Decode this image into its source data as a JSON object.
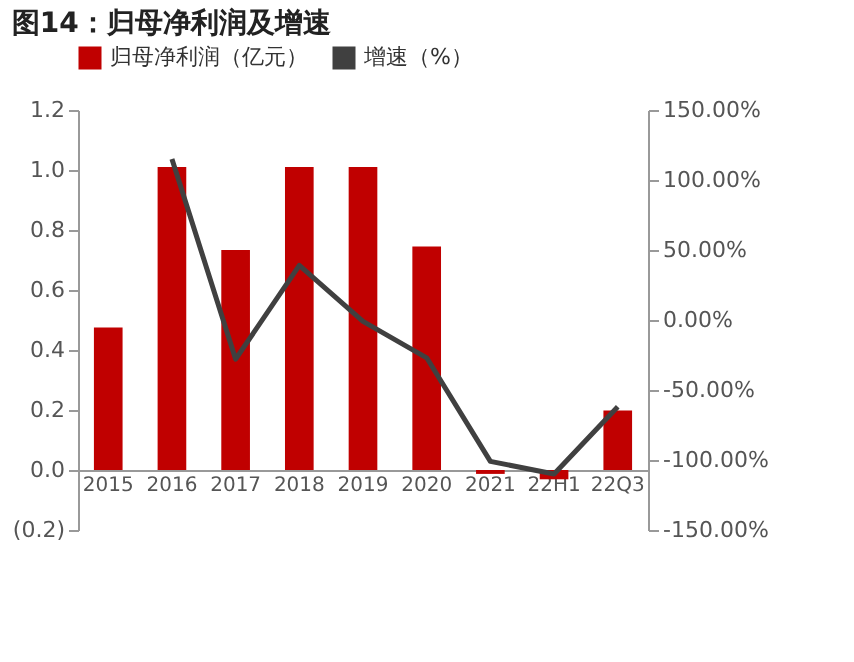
{
  "chart_data": {
    "type": "bar",
    "title": "图14：归母净利润及增速",
    "categories": [
      "2015",
      "2016",
      "2017",
      "2018",
      "2019",
      "2020",
      "2021",
      "22H1",
      "22Q3"
    ],
    "series": [
      {
        "name": "归母净利润（亿元）",
        "color": "#c00000",
        "values": [
          0.475,
          1.01,
          0.733,
          1.01,
          1.01,
          0.745,
          -0.013,
          -0.031,
          0.198
        ]
      },
      {
        "name": "增速（%）",
        "type": "line",
        "axis": "y2",
        "color": "#404040",
        "values": [
          null,
          115,
          -28,
          39,
          -1,
          -27,
          -101,
          -110,
          -62
        ]
      }
    ],
    "ylim": [
      -0.2,
      1.2
    ],
    "yticks": [
      {
        "value": -0.2,
        "label": "(0.2)"
      },
      {
        "value": 0,
        "label": "0.0"
      },
      {
        "value": 0.2,
        "label": "0.2"
      },
      {
        "value": 0.4,
        "label": "0.4"
      },
      {
        "value": 0.6,
        "label": "0.6"
      },
      {
        "value": 0.8,
        "label": "0.8"
      },
      {
        "value": 1.0,
        "label": "1.0"
      },
      {
        "value": 1.2,
        "label": "1.2"
      }
    ],
    "y2lim": [
      -150,
      150
    ],
    "y2ticks": [
      {
        "value": -150,
        "label": "-150.00%"
      },
      {
        "value": -100,
        "label": "-100.00%"
      },
      {
        "value": -50,
        "label": "-50.00%"
      },
      {
        "value": 0,
        "label": "0.00%"
      },
      {
        "value": 50,
        "label": "50.00%"
      },
      {
        "value": 100,
        "label": "100.00%"
      },
      {
        "value": 150,
        "label": "150.00%"
      }
    ],
    "grid": false,
    "legend": "top"
  }
}
